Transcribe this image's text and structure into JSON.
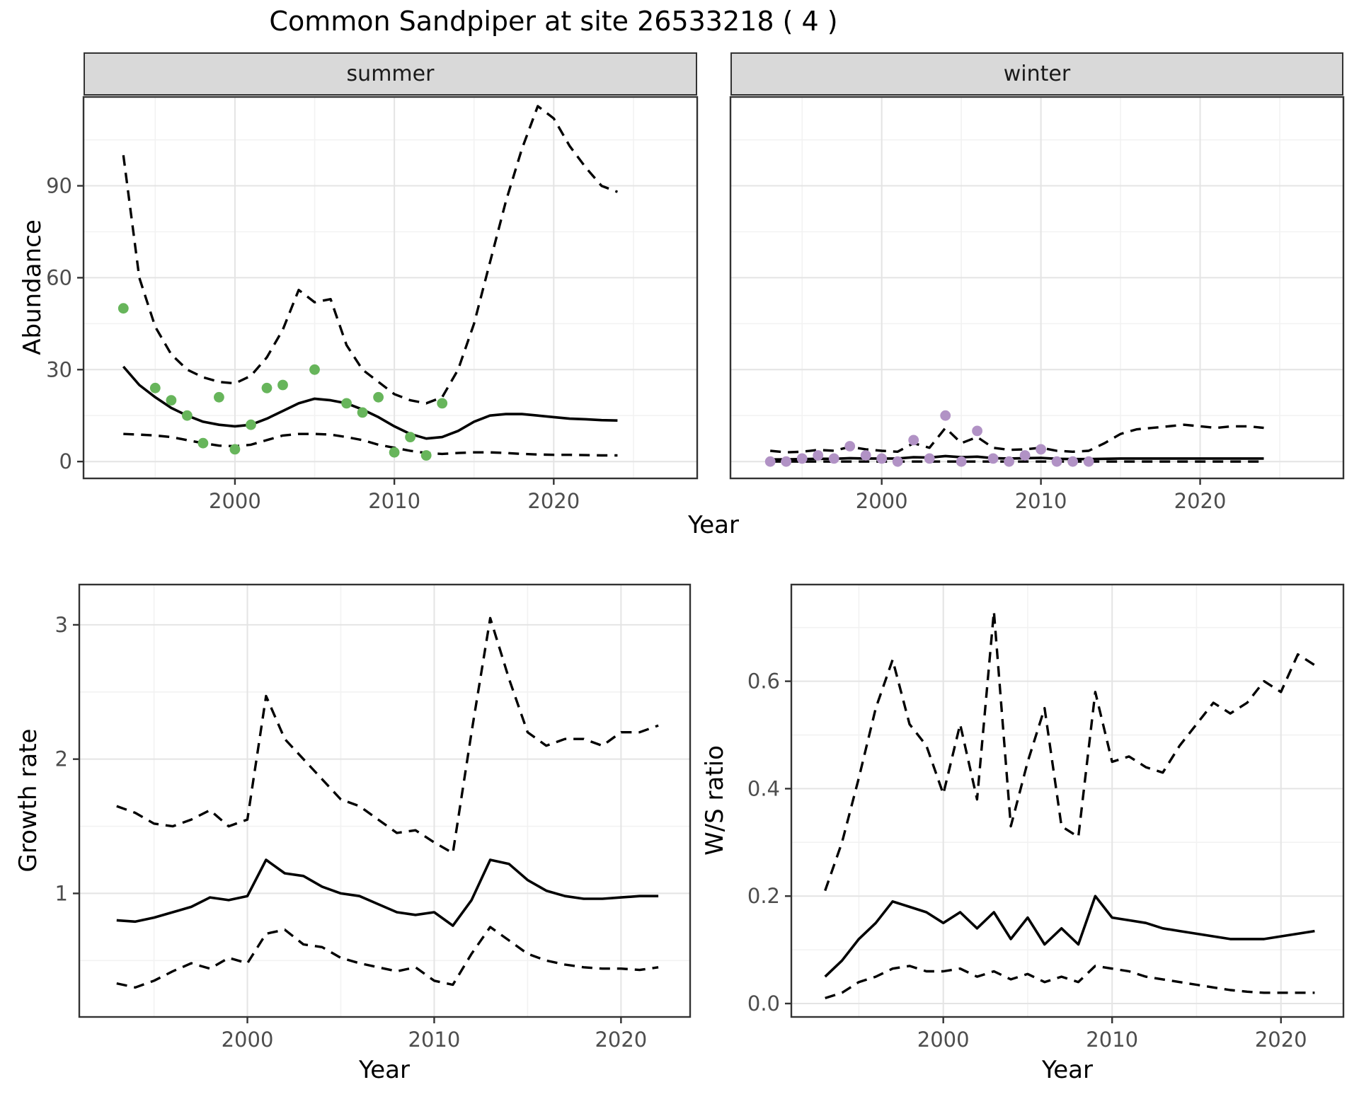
{
  "title": "Common Sandpiper at site 26533218 ( 4 )",
  "facets": [
    {
      "label": "summer"
    },
    {
      "label": "winter"
    }
  ],
  "axes": {
    "abundance": "Abundance",
    "year_top": "Year",
    "growth_rate": "Growth rate",
    "year_growth": "Year",
    "ws_ratio": "W/S ratio",
    "year_ws": "Year"
  },
  "colors": {
    "summer_points": "#67b55b",
    "winter_points": "#b192c5",
    "line": "#000000",
    "strip_bg": "#d9d9d9",
    "panel_border": "#333333",
    "grid_major": "#e4e4e4",
    "grid_minor": "#f2f2f2",
    "axis_text": "#4d4d4d",
    "tick_mark": "#333333"
  },
  "chart_data": [
    {
      "id": "abundance_summer",
      "type": "line",
      "facet": "summer",
      "xlabel": "Year",
      "ylabel": "Abundance",
      "xlim": [
        1990.5,
        2029
      ],
      "ylim": [
        -5.5,
        119
      ],
      "xticks": [
        2000,
        2010,
        2020
      ],
      "xtick_labels": [
        "2000",
        "2010",
        "2020"
      ],
      "xminor": [
        1995,
        2005,
        2015,
        2025
      ],
      "yticks": [
        0,
        30,
        60,
        90
      ],
      "ytick_labels": [
        "0",
        "30",
        "60",
        "90"
      ],
      "yminor": [
        15,
        45,
        75,
        105
      ],
      "legend_position": "none",
      "grid": true,
      "observed_points": [
        [
          1993,
          50
        ],
        [
          1995,
          24
        ],
        [
          1996,
          20
        ],
        [
          1997,
          15
        ],
        [
          1998,
          6
        ],
        [
          1999,
          21
        ],
        [
          2000,
          4
        ],
        [
          2001,
          12
        ],
        [
          2002,
          24
        ],
        [
          2003,
          25
        ],
        [
          2005,
          30
        ],
        [
          2007,
          19
        ],
        [
          2008,
          16
        ],
        [
          2009,
          21
        ],
        [
          2010,
          3
        ],
        [
          2011,
          8
        ],
        [
          2012,
          2
        ],
        [
          2013,
          19
        ]
      ],
      "years": [
        1993,
        1994,
        1995,
        1996,
        1997,
        1998,
        1999,
        2000,
        2001,
        2002,
        2003,
        2004,
        2005,
        2006,
        2007,
        2008,
        2009,
        2010,
        2011,
        2012,
        2013,
        2014,
        2015,
        2016,
        2017,
        2018,
        2019,
        2020,
        2021,
        2022,
        2023,
        2024
      ],
      "fitted": [
        31,
        25,
        21,
        17.5,
        15,
        13,
        12,
        11.5,
        12,
        14,
        16.5,
        19,
        20.5,
        20,
        19,
        17,
        14.5,
        11.5,
        9,
        7.5,
        8,
        10,
        13,
        15,
        15.5,
        15.5,
        15,
        14.5,
        14,
        13.8,
        13.5,
        13.4
      ],
      "upper_ci": [
        100,
        60,
        44,
        35,
        30,
        27.5,
        26,
        25.5,
        28,
        34,
        43,
        56,
        52,
        53,
        38,
        30,
        26,
        22,
        20,
        19,
        21,
        30,
        45,
        65,
        85,
        102,
        116,
        112,
        103,
        96,
        90,
        88
      ],
      "lower_ci": [
        9,
        8.8,
        8.5,
        8,
        7,
        6,
        5.2,
        5,
        5.5,
        7,
        8.5,
        9,
        9,
        8.8,
        8,
        7,
        5.5,
        4.5,
        3.5,
        2.8,
        2.5,
        2.8,
        3,
        3,
        2.8,
        2.5,
        2.3,
        2.2,
        2.2,
        2.1,
        2,
        2
      ]
    },
    {
      "id": "abundance_winter",
      "type": "line",
      "facet": "winter",
      "xlabel": "Year",
      "ylabel": "Abundance",
      "xlim": [
        1990.5,
        2029
      ],
      "ylim": [
        -5.5,
        119
      ],
      "xticks": [
        2000,
        2010,
        2020
      ],
      "xtick_labels": [
        "2000",
        "2010",
        "2020"
      ],
      "xminor": [
        1995,
        2005,
        2015,
        2025
      ],
      "yticks": [
        0,
        30,
        60,
        90
      ],
      "ytick_labels": [
        "0",
        "30",
        "60",
        "90"
      ],
      "yminor": [
        15,
        45,
        75,
        105
      ],
      "legend_position": "none",
      "grid": true,
      "observed_points": [
        [
          1993,
          0
        ],
        [
          1994,
          0
        ],
        [
          1995,
          1
        ],
        [
          1996,
          2
        ],
        [
          1997,
          1
        ],
        [
          1998,
          5
        ],
        [
          1999,
          2
        ],
        [
          2000,
          1
        ],
        [
          2001,
          0
        ],
        [
          2002,
          7
        ],
        [
          2003,
          1
        ],
        [
          2004,
          15
        ],
        [
          2005,
          0
        ],
        [
          2006,
          10
        ],
        [
          2007,
          1
        ],
        [
          2008,
          0
        ],
        [
          2009,
          2
        ],
        [
          2010,
          4
        ],
        [
          2011,
          0
        ],
        [
          2012,
          0
        ],
        [
          2013,
          0
        ]
      ],
      "years": [
        1993,
        1994,
        1995,
        1996,
        1997,
        1998,
        1999,
        2000,
        2001,
        2002,
        2003,
        2004,
        2005,
        2006,
        2007,
        2008,
        2009,
        2010,
        2011,
        2012,
        2013,
        2014,
        2015,
        2016,
        2017,
        2018,
        2019,
        2020,
        2021,
        2022,
        2023,
        2024
      ],
      "fitted": [
        0.7,
        0.7,
        0.8,
        0.9,
        0.9,
        1.1,
        1.0,
        1.0,
        1.0,
        1.4,
        1.3,
        1.8,
        1.4,
        1.6,
        1.1,
        1.0,
        1.1,
        1.2,
        0.9,
        0.8,
        0.8,
        0.9,
        1.0,
        1.0,
        1.0,
        1.0,
        1.0,
        1.0,
        1.0,
        1.0,
        1.0,
        1.0
      ],
      "upper_ci": [
        3.5,
        3.0,
        3.2,
        3.8,
        3.5,
        4.8,
        4.0,
        3.5,
        3.2,
        6.0,
        4.5,
        11.0,
        6.0,
        8.0,
        4.5,
        3.8,
        4.0,
        4.5,
        3.5,
        3.2,
        3.5,
        6.0,
        9.0,
        10.5,
        11.0,
        11.5,
        12.0,
        11.5,
        11.0,
        11.5,
        11.5,
        11.0
      ],
      "lower_ci": [
        0,
        0,
        0,
        0,
        0,
        0,
        0,
        0,
        0,
        0,
        0,
        0,
        0,
        0,
        0,
        0,
        0,
        0,
        0,
        0,
        0,
        0,
        0,
        0,
        0,
        0,
        0,
        0,
        0,
        0,
        0,
        0
      ]
    },
    {
      "id": "growth_rate",
      "type": "line",
      "facet": null,
      "xlabel": "Year",
      "ylabel": "Growth rate",
      "xlim": [
        1991,
        2023.7
      ],
      "ylim": [
        0.08,
        3.3
      ],
      "xticks": [
        2000,
        2010,
        2020
      ],
      "xtick_labels": [
        "2000",
        "2010",
        "2020"
      ],
      "xminor": [
        1995,
        2005,
        2015
      ],
      "yticks": [
        1,
        2,
        3
      ],
      "ytick_labels": [
        "1",
        "2",
        "3"
      ],
      "yminor": [
        0.5,
        1.5,
        2.5
      ],
      "legend_position": "none",
      "grid": true,
      "observed_points": [],
      "years": [
        1993,
        1994,
        1995,
        1996,
        1997,
        1998,
        1999,
        2000,
        2001,
        2002,
        2003,
        2004,
        2005,
        2006,
        2007,
        2008,
        2009,
        2010,
        2011,
        2012,
        2013,
        2014,
        2015,
        2016,
        2017,
        2018,
        2019,
        2020,
        2021,
        2022
      ],
      "fitted": [
        0.8,
        0.79,
        0.82,
        0.86,
        0.9,
        0.97,
        0.95,
        0.98,
        1.25,
        1.15,
        1.13,
        1.05,
        1.0,
        0.98,
        0.92,
        0.86,
        0.84,
        0.86,
        0.76,
        0.95,
        1.25,
        1.22,
        1.1,
        1.02,
        0.98,
        0.96,
        0.96,
        0.97,
        0.98,
        0.98
      ],
      "upper_ci": [
        1.65,
        1.6,
        1.52,
        1.5,
        1.55,
        1.62,
        1.5,
        1.55,
        2.47,
        2.15,
        2.0,
        1.85,
        1.7,
        1.65,
        1.55,
        1.45,
        1.47,
        1.38,
        1.3,
        2.2,
        3.05,
        2.6,
        2.2,
        2.1,
        2.15,
        2.15,
        2.1,
        2.2,
        2.2,
        2.25
      ],
      "lower_ci": [
        0.33,
        0.3,
        0.35,
        0.42,
        0.48,
        0.44,
        0.52,
        0.48,
        0.7,
        0.73,
        0.62,
        0.6,
        0.52,
        0.48,
        0.45,
        0.42,
        0.45,
        0.35,
        0.32,
        0.55,
        0.75,
        0.65,
        0.55,
        0.5,
        0.47,
        0.45,
        0.44,
        0.44,
        0.43,
        0.45
      ]
    },
    {
      "id": "ws_ratio",
      "type": "line",
      "facet": null,
      "xlabel": "Year",
      "ylabel": "W/S ratio",
      "xlim": [
        1991,
        2023.7
      ],
      "ylim": [
        -0.025,
        0.78
      ],
      "xticks": [
        2000,
        2010,
        2020
      ],
      "xtick_labels": [
        "2000",
        "2010",
        "2020"
      ],
      "xminor": [
        1995,
        2005,
        2015
      ],
      "yticks": [
        0,
        0.2,
        0.4,
        0.6
      ],
      "ytick_labels": [
        "0.0",
        "0.2",
        "0.4",
        "0.6"
      ],
      "yminor": [
        0.1,
        0.3,
        0.5,
        0.7
      ],
      "legend_position": "none",
      "grid": true,
      "observed_points": [],
      "years": [
        1993,
        1994,
        1995,
        1996,
        1997,
        1998,
        1999,
        2000,
        2001,
        2002,
        2003,
        2004,
        2005,
        2006,
        2007,
        2008,
        2009,
        2010,
        2011,
        2012,
        2013,
        2014,
        2015,
        2016,
        2017,
        2018,
        2019,
        2020,
        2021,
        2022
      ],
      "fitted": [
        0.05,
        0.08,
        0.12,
        0.15,
        0.19,
        0.18,
        0.17,
        0.15,
        0.17,
        0.14,
        0.17,
        0.12,
        0.16,
        0.11,
        0.14,
        0.11,
        0.2,
        0.16,
        0.155,
        0.15,
        0.14,
        0.135,
        0.13,
        0.125,
        0.12,
        0.12,
        0.12,
        0.125,
        0.13,
        0.135
      ],
      "upper_ci": [
        0.21,
        0.3,
        0.42,
        0.55,
        0.64,
        0.52,
        0.48,
        0.39,
        0.52,
        0.38,
        0.73,
        0.33,
        0.45,
        0.55,
        0.33,
        0.31,
        0.58,
        0.45,
        0.46,
        0.44,
        0.43,
        0.48,
        0.52,
        0.56,
        0.54,
        0.56,
        0.6,
        0.58,
        0.65,
        0.63
      ],
      "lower_ci": [
        0.01,
        0.02,
        0.04,
        0.05,
        0.065,
        0.07,
        0.06,
        0.06,
        0.065,
        0.05,
        0.06,
        0.045,
        0.055,
        0.04,
        0.05,
        0.04,
        0.07,
        0.065,
        0.06,
        0.05,
        0.045,
        0.04,
        0.035,
        0.03,
        0.025,
        0.022,
        0.02,
        0.02,
        0.02,
        0.02
      ]
    }
  ]
}
